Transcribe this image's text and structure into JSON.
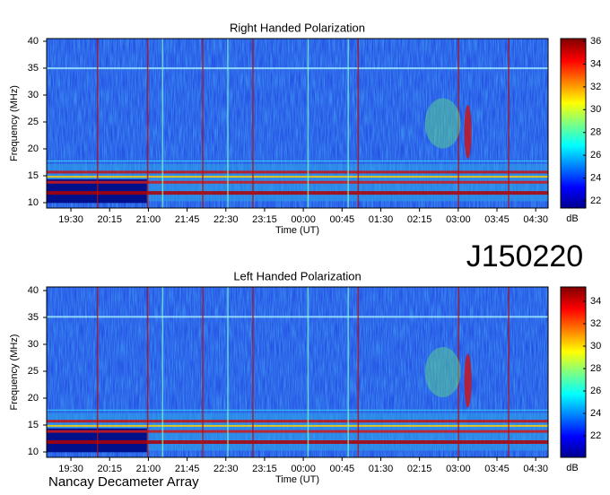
{
  "chart_data": [
    {
      "type": "heatmap",
      "title": "Right Handed Polarization",
      "xlabel": "Time (UT)",
      "ylabel": "Frequency (MHz)",
      "xlim": [
        19.03,
        28.74
      ],
      "xticks": [
        {
          "value": 19.5,
          "label": "19:30"
        },
        {
          "value": 20.25,
          "label": "20:15"
        },
        {
          "value": 21.0,
          "label": "21:00"
        },
        {
          "value": 21.75,
          "label": "21:45"
        },
        {
          "value": 22.5,
          "label": "22:30"
        },
        {
          "value": 23.25,
          "label": "23:15"
        },
        {
          "value": 24.0,
          "label": "00:00"
        },
        {
          "value": 24.75,
          "label": "00:45"
        },
        {
          "value": 25.5,
          "label": "01:30"
        },
        {
          "value": 26.25,
          "label": "02:15"
        },
        {
          "value": 27.0,
          "label": "03:00"
        },
        {
          "value": 27.75,
          "label": "03:45"
        },
        {
          "value": 28.5,
          "label": "04:30"
        }
      ],
      "ylim": [
        9,
        40.5
      ],
      "yticks": [
        10,
        15,
        20,
        25,
        30,
        35,
        40
      ],
      "colormap": "jet",
      "colorbar": {
        "label": "dB",
        "lim": [
          21.37,
          36.24
        ],
        "ticks": [
          22,
          24,
          26,
          28,
          30,
          32,
          34,
          36
        ]
      }
    },
    {
      "type": "heatmap",
      "title": "Left Handed Polarization",
      "xlabel": "Time (UT)",
      "ylabel": "Frequency (MHz)",
      "xlim": [
        19.03,
        28.74
      ],
      "xticks": [
        {
          "value": 19.5,
          "label": "19:30"
        },
        {
          "value": 20.25,
          "label": "20:15"
        },
        {
          "value": 21.0,
          "label": "21:00"
        },
        {
          "value": 21.75,
          "label": "21:45"
        },
        {
          "value": 22.5,
          "label": "22:30"
        },
        {
          "value": 23.25,
          "label": "23:15"
        },
        {
          "value": 24.0,
          "label": "00:00"
        },
        {
          "value": 24.75,
          "label": "00:45"
        },
        {
          "value": 25.5,
          "label": "01:30"
        },
        {
          "value": 26.25,
          "label": "02:15"
        },
        {
          "value": 27.0,
          "label": "03:00"
        },
        {
          "value": 27.75,
          "label": "03:45"
        },
        {
          "value": 28.5,
          "label": "04:30"
        }
      ],
      "ylim": [
        9,
        40.67
      ],
      "yticks": [
        10,
        15,
        20,
        25,
        30,
        35,
        40
      ],
      "colormap": "jet",
      "colorbar": {
        "label": "dB",
        "lim": [
          20.08,
          35.28
        ],
        "ticks": [
          22,
          24,
          26,
          28,
          30,
          32,
          34
        ]
      }
    }
  ],
  "label": "J150220",
  "footer": "Nancay Decameter Array"
}
